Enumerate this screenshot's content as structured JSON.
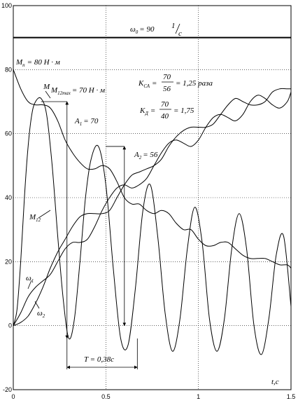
{
  "chart_data": {
    "type": "line",
    "xlabel": "t,c",
    "xlim": [
      0,
      1.5
    ],
    "ylim": [
      -20,
      100
    ],
    "x_ticks": [
      "0",
      "0.5",
      "1",
      "1.5"
    ],
    "y_ticks": [
      "-20",
      "0",
      "20",
      "40",
      "60",
      "80",
      "100"
    ],
    "grid": true,
    "series": [
      {
        "name": "M",
        "x": [
          0.0,
          0.04,
          0.08,
          0.12,
          0.16,
          0.2,
          0.24,
          0.28,
          0.32,
          0.36,
          0.4,
          0.44,
          0.48,
          0.52,
          0.56,
          0.6,
          0.64,
          0.68,
          0.72,
          0.76,
          0.8,
          0.84,
          0.88,
          0.92,
          0.96,
          1.0,
          1.04,
          1.08,
          1.12,
          1.16,
          1.2,
          1.24,
          1.28,
          1.32,
          1.36,
          1.4,
          1.44,
          1.48,
          1.5
        ],
        "y": [
          80,
          74,
          70,
          69,
          69,
          68,
          64,
          58,
          54,
          51,
          49,
          49,
          50,
          49,
          45,
          40,
          38,
          38,
          36,
          35,
          36,
          35,
          32,
          30,
          30,
          27,
          25,
          25,
          26,
          26,
          24,
          22,
          21,
          21,
          21,
          20,
          19,
          19,
          18
        ]
      },
      {
        "name": "M₁₂",
        "x": [
          0.0,
          0.02,
          0.04,
          0.06,
          0.08,
          0.1,
          0.12,
          0.15,
          0.18,
          0.21,
          0.24,
          0.27,
          0.3,
          0.33,
          0.36,
          0.39,
          0.42,
          0.46,
          0.5,
          0.54,
          0.58,
          0.62,
          0.66,
          0.7,
          0.74,
          0.78,
          0.82,
          0.86,
          0.9,
          0.94,
          0.98,
          1.02,
          1.06,
          1.1,
          1.14,
          1.18,
          1.22,
          1.26,
          1.3,
          1.34,
          1.38,
          1.42,
          1.46,
          1.5
        ],
        "y": [
          0,
          5,
          20,
          40,
          56,
          66,
          70,
          71,
          66,
          50,
          28,
          8,
          -4,
          2,
          20,
          40,
          52,
          56,
          44,
          18,
          -4,
          -6,
          12,
          36,
          44,
          28,
          4,
          -8,
          2,
          24,
          37,
          26,
          2,
          -8,
          2,
          24,
          35,
          24,
          0,
          -9,
          2,
          22,
          28,
          6
        ]
      },
      {
        "name": "ω₁",
        "x": [
          0.0,
          0.04,
          0.08,
          0.12,
          0.16,
          0.2,
          0.24,
          0.28,
          0.32,
          0.36,
          0.4,
          0.44,
          0.48,
          0.52,
          0.56,
          0.6,
          0.64,
          0.68,
          0.72,
          0.76,
          0.8,
          0.84,
          0.88,
          0.92,
          0.96,
          1.0,
          1.04,
          1.08,
          1.12,
          1.16,
          1.2,
          1.24,
          1.28,
          1.32,
          1.36,
          1.4,
          1.44,
          1.48,
          1.5
        ],
        "y": [
          0,
          4,
          9,
          12,
          14,
          16,
          20,
          24,
          26,
          26,
          27,
          31,
          36,
          40,
          43,
          44,
          43,
          44,
          46,
          50,
          54,
          57,
          58,
          57,
          56,
          58,
          62,
          65,
          66,
          65,
          64,
          66,
          70,
          72,
          71,
          69,
          68,
          70,
          73
        ]
      },
      {
        "name": "ω₂",
        "x": [
          0.0,
          0.04,
          0.08,
          0.12,
          0.16,
          0.2,
          0.24,
          0.28,
          0.32,
          0.36,
          0.4,
          0.44,
          0.48,
          0.52,
          0.56,
          0.6,
          0.64,
          0.68,
          0.72,
          0.76,
          0.8,
          0.84,
          0.88,
          0.92,
          0.96,
          1.0,
          1.04,
          1.08,
          1.12,
          1.16,
          1.2,
          1.24,
          1.28,
          1.32,
          1.36,
          1.4,
          1.44,
          1.48,
          1.5
        ],
        "y": [
          0,
          1,
          3,
          7,
          12,
          18,
          23,
          27,
          31,
          34,
          35,
          35,
          35,
          36,
          40,
          44,
          47,
          48,
          49,
          50,
          52,
          56,
          59,
          61,
          62,
          62,
          62,
          63,
          66,
          69,
          71,
          70,
          69,
          69,
          70,
          73,
          74,
          74,
          74
        ]
      },
      {
        "name": "ω₀",
        "x": [
          0,
          1.5
        ],
        "y": [
          90,
          90
        ]
      }
    ],
    "annotations": {
      "omega0": "ω₀ = 90 1/c",
      "mp_label": "Mп = 80 Н · м",
      "m_label": "M",
      "m12max_label": "M12max = 70 Н · м",
      "a1_label": "A₁ = 70",
      "a2_label": "A₂ = 56",
      "m12_label": "M₁₂",
      "w1_label": "ω₁",
      "w2_label": "ω₂",
      "ksa_label": "KСА = 70/56 = 1,25 раза",
      "kd_label": "KД = 70/40 = 1,75",
      "period_label": "T = 0,38c"
    },
    "markers": {
      "A1": {
        "x": 0.29,
        "y_top": 70,
        "y_bot": -4
      },
      "A2": {
        "x": 0.6,
        "y_top": 56,
        "y_bot": 0
      },
      "period": {
        "x_start": 0.29,
        "x_end": 0.67,
        "y": -13
      },
      "m12max_leader": {
        "x_from": 0.15,
        "x_to": 0.29,
        "y": 70
      }
    }
  },
  "text": {
    "omega0_main": "ω",
    "omega0_sub": "0",
    "omega0_eq": "= 90",
    "omega0_unit_num": "1",
    "omega0_unit_den": "c",
    "mp_main": "M",
    "mp_sub": "п",
    "mp_rest": "= 80 Н · м",
    "m_label": "M",
    "m12max_main": "M",
    "m12max_sub": "12max",
    "m12max_rest": "= 70 Н · м",
    "a1_main": "A",
    "a1_sub": "1",
    "a1_rest": "= 70",
    "a2_main": "A",
    "a2_sub": "2",
    "a2_rest": "= 56",
    "m12_main": "M",
    "m12_sub": "12",
    "w1_main": "ω",
    "w1_sub": "1",
    "w2_main": "ω",
    "w2_sub": "2",
    "ksa_main": "K",
    "ksa_sub": "СА",
    "ksa_eq": "=",
    "ksa_num": "70",
    "ksa_den": "56",
    "ksa_rest": "= 1,25 раза",
    "kd_main": "K",
    "kd_sub": "Д",
    "kd_eq": "=",
    "kd_num": "70",
    "kd_den": "40",
    "kd_rest": "= 1,75",
    "period": "T = 0,38c",
    "xlabel": "t,c"
  }
}
